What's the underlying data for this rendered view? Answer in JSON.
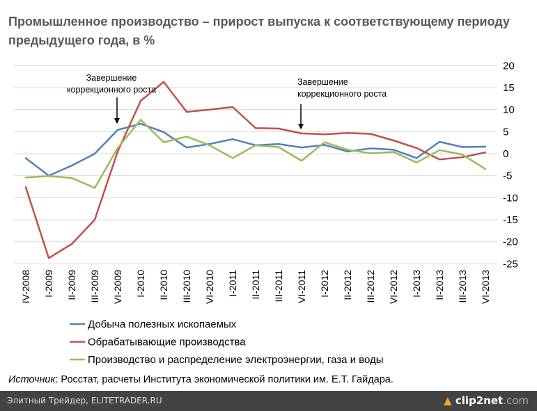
{
  "title": "Промышленное производство – прирост выпуска к соответствующему периоду предыдущего года, в %",
  "chart_data": {
    "type": "line",
    "title": "Промышленное производство – прирост выпуска к соответствующему периоду предыдущего года, в %",
    "categories": [
      "IV-2008",
      "I-2009",
      "II-2009",
      "III-2009",
      "VI-2009",
      "I-2010",
      "II-2010",
      "III-2010",
      "VI-2010",
      "I-2011",
      "II-2011",
      "III-2011",
      "VI-2011",
      "I-2012",
      "II-2012",
      "III-2012",
      "VI-2012",
      "I-2013",
      "II-2013",
      "III-2013",
      "VI-2013"
    ],
    "ylim": [
      -25,
      20
    ],
    "yticks": [
      "20",
      "15",
      "10",
      "5",
      "0",
      "-5",
      "-10",
      "-15",
      "-20",
      "-25"
    ],
    "grid": true,
    "legend_position": "bottom",
    "series": [
      {
        "name": "Добыча полезных ископаемых",
        "color": "#4f81bd",
        "values": [
          -1,
          -5,
          -2.7,
          0,
          5.4,
          6.8,
          4.9,
          1.4,
          2.2,
          3.3,
          1.9,
          2.2,
          1.4,
          2,
          0.5,
          1.2,
          0.9,
          -1,
          2.7,
          1.5,
          1.6
        ]
      },
      {
        "name": "Обрабатывающие производства",
        "color": "#c0504d",
        "values": [
          -7.6,
          -23.7,
          -20.5,
          -15,
          0.5,
          12,
          16.3,
          9.5,
          10,
          10.6,
          5.8,
          5.7,
          4.6,
          4.4,
          4.7,
          4.5,
          3,
          1.3,
          -1.3,
          -0.8,
          0.3
        ]
      },
      {
        "name": "Производство и распределение электроэнергии, газа и воды",
        "color": "#9bbb59",
        "values": [
          -5.4,
          -5.1,
          -5.5,
          -7.8,
          1.3,
          7.7,
          2.6,
          3.9,
          1.9,
          -1,
          1.9,
          1.5,
          -1.6,
          2.6,
          0.9,
          0.1,
          0.4,
          -2,
          0.8,
          -0.2,
          -3.5
        ]
      }
    ],
    "annotations": [
      {
        "lines": [
          "Завершение",
          "коррекционного роста"
        ],
        "category": "VI-2009"
      },
      {
        "lines": [
          "Завершение",
          "коррекционного роста"
        ],
        "category": "VI-2011"
      }
    ]
  },
  "source": {
    "label": "Источник",
    "text": ": Росстат, расчеты Института экономической политики им. Е.Т. Гайдара."
  },
  "footer": {
    "left": "Элитный Трейдер, ELITETRADER.RU",
    "brand": "clip2net",
    ".com": ".com",
    "brand_suffix": ".com"
  }
}
